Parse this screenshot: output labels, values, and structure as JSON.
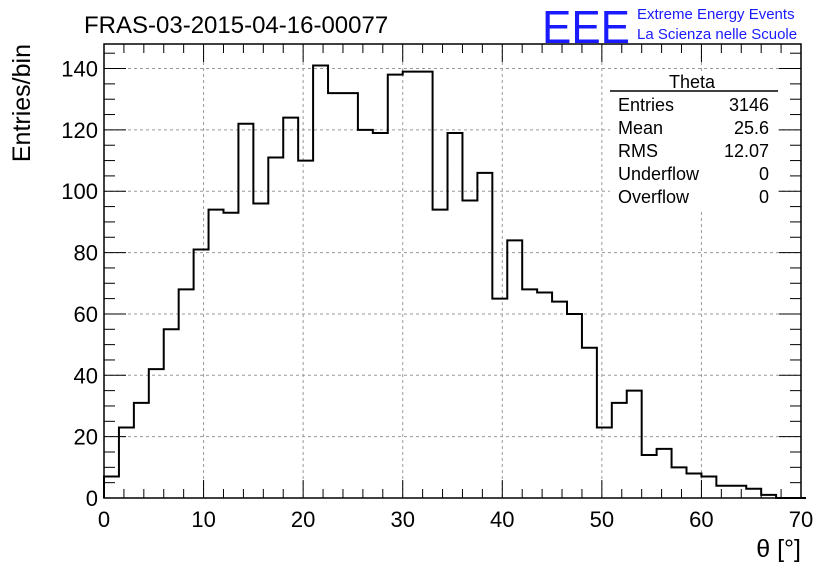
{
  "logo": {
    "text": "EEE",
    "line1": "Extreme Energy Events",
    "line2": "La Scienza nelle Scuole",
    "color": "#1a1aff"
  },
  "chart_data": {
    "type": "histogram",
    "title": "FRAS-03-2015-04-16-00077",
    "xlabel": "θ [°]",
    "ylabel": "Entries/bin",
    "xlim": [
      0,
      70
    ],
    "ylim": [
      0,
      148
    ],
    "grid": true,
    "bin_width": 1.5,
    "bin_start": 0,
    "values": [
      7,
      23,
      31,
      42,
      55,
      68,
      81,
      94,
      93,
      122,
      96,
      111,
      124,
      110,
      141,
      132,
      132,
      120,
      119,
      138,
      139,
      139,
      94,
      119,
      97,
      106,
      65,
      84,
      68,
      67,
      64,
      60,
      49,
      23,
      31,
      35,
      14,
      16,
      10,
      8,
      7,
      4,
      4,
      3,
      1,
      0,
      0
    ],
    "x_ticks": [
      "0",
      "10",
      "20",
      "30",
      "40",
      "50",
      "60",
      "70"
    ],
    "y_ticks": [
      "0",
      "20",
      "40",
      "60",
      "80",
      "100",
      "120",
      "140"
    ],
    "stats": {
      "title": "Theta",
      "rows": [
        {
          "label": "Entries",
          "value": "3146"
        },
        {
          "label": "Mean",
          "value": "25.6"
        },
        {
          "label": "RMS",
          "value": "12.07"
        },
        {
          "label": "Underflow",
          "value": "0"
        },
        {
          "label": "Overflow",
          "value": "0"
        }
      ]
    }
  }
}
